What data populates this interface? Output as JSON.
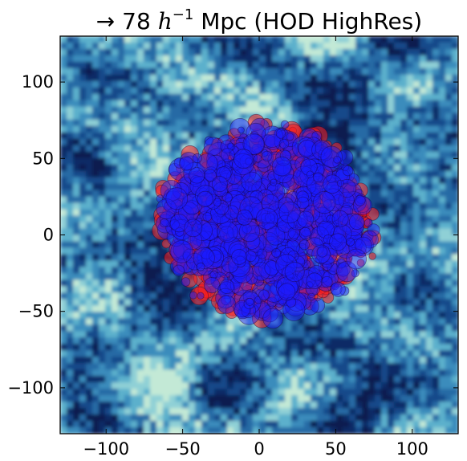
{
  "chart_data": {
    "type": "scatter",
    "title": "→ 78 h⁻¹ Mpc (HOD HighRes)",
    "title_parts": {
      "arrow": "→",
      "number": "78",
      "h": "h",
      "exp": "−1",
      "rest": "Mpc (HOD HighRes)"
    },
    "xlabel": "",
    "ylabel": "",
    "xlim": [
      -130,
      130
    ],
    "ylim": [
      -130,
      130
    ],
    "x_ticks": [
      -100,
      -50,
      0,
      50,
      100
    ],
    "y_ticks": [
      100,
      50,
      0,
      -50,
      -100
    ],
    "x_tick_labels": [
      "−100",
      "−50",
      "0",
      "50",
      "100"
    ],
    "y_tick_labels": [
      "100",
      "50",
      "0",
      "−50",
      "−100"
    ],
    "grid": false,
    "legend": "none",
    "background": "density map (dark navy to light cyan)",
    "cluster": {
      "center": [
        5,
        8
      ],
      "radius": 65
    },
    "series": [
      {
        "color": "#ff1a1a",
        "alpha": 0.55,
        "size_range": [
          4,
          12
        ]
      },
      {
        "color": "#1a1aff",
        "alpha": 0.45,
        "size_range": [
          4,
          14
        ]
      }
    ]
  }
}
